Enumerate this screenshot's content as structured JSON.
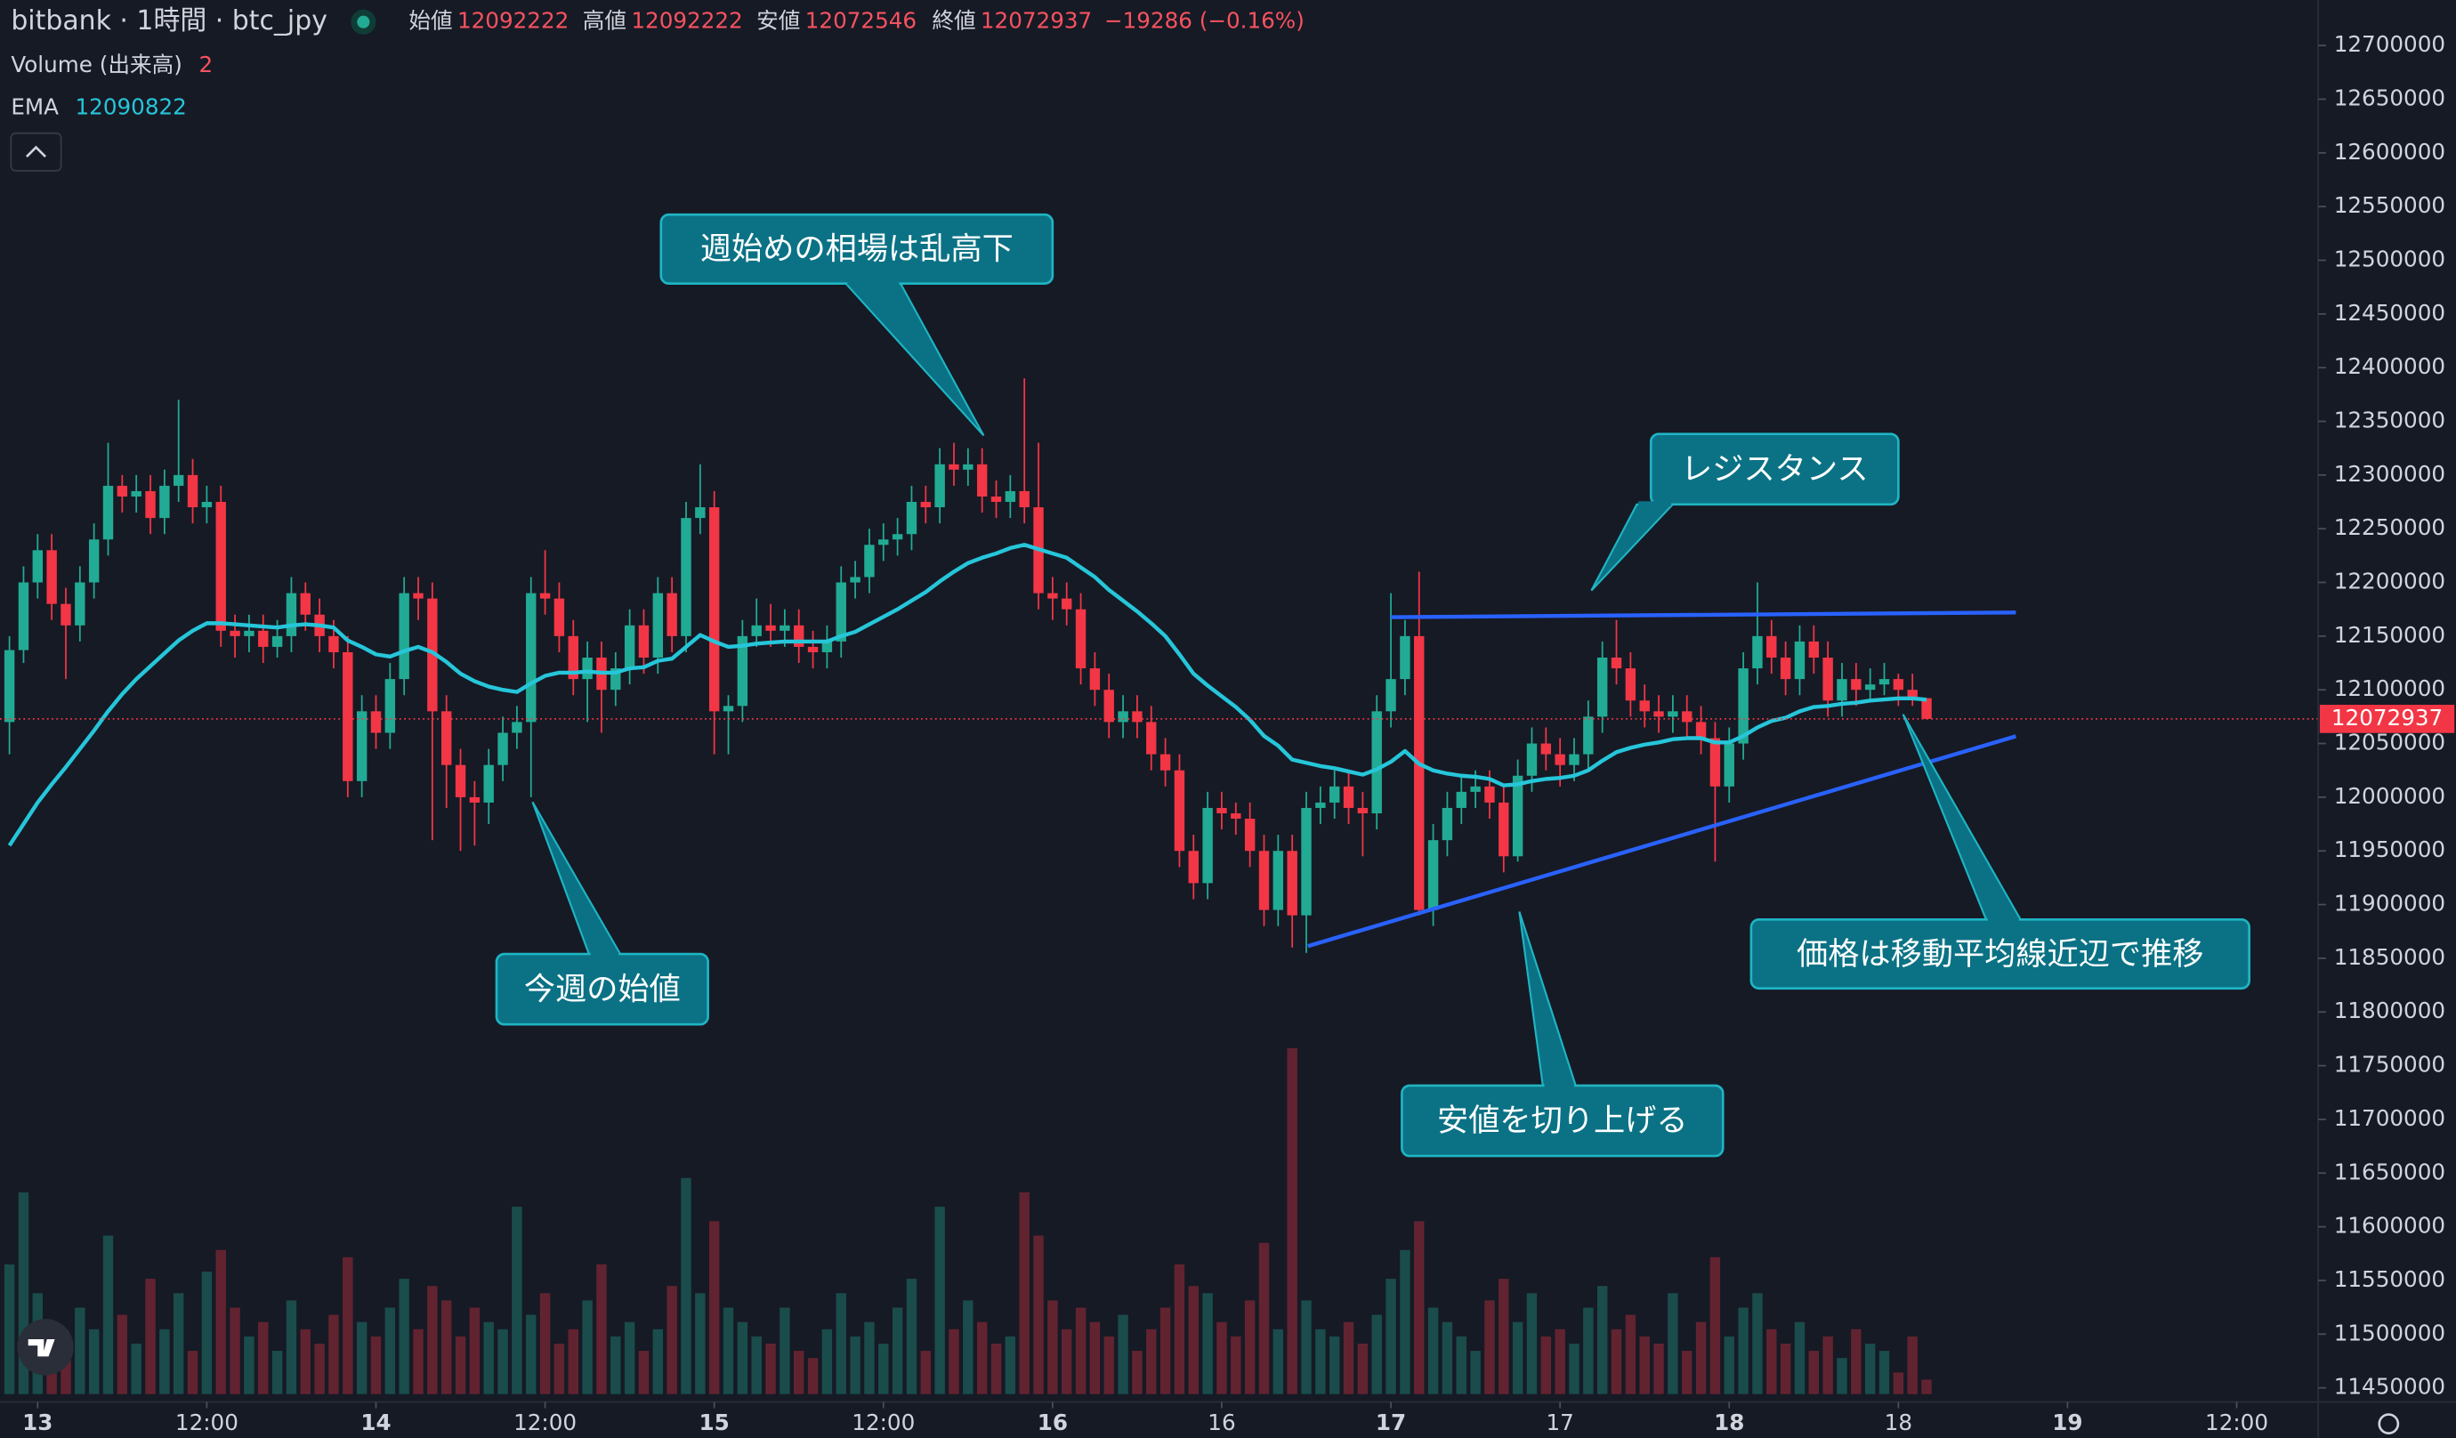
{
  "chart_data": {
    "type": "candlestick",
    "title": "bitbank · 1時間 · btc_jpy",
    "ohlc_labels": [
      "始値",
      "高値",
      "安値",
      "終値"
    ],
    "change": "−19286 (−0.16%)",
    "volume_label": "Volume (出来高)",
    "ema_label": "EMA",
    "up_color": "#22ab94",
    "down_color": "#f23645",
    "ema_color": "#26c6da",
    "xlim": [
      -0.67,
      163.78
    ],
    "xticks": [
      {
        "value": 2,
        "label": "13"
      },
      {
        "value": 14,
        "label": "12:00"
      },
      {
        "value": 26,
        "label": "14"
      },
      {
        "value": 38,
        "label": "12:00"
      },
      {
        "value": 50,
        "label": "15"
      },
      {
        "value": 62,
        "label": "12:00"
      },
      {
        "value": 74,
        "label": "16"
      },
      {
        "value": 86,
        "label": "16"
      },
      {
        "value": 98,
        "label": "17"
      },
      {
        "value": 110,
        "label": "17"
      },
      {
        "value": 122,
        "label": "18"
      },
      {
        "value": 134,
        "label": "18"
      },
      {
        "value": 146,
        "label": "19"
      },
      {
        "value": 158,
        "label": "12:00"
      }
    ],
    "ylim": [
      11436900,
      12742300
    ],
    "yticks": [
      11450000,
      11500000,
      11550000,
      11600000,
      11650000,
      11700000,
      11750000,
      11800000,
      11850000,
      11900000,
      11950000,
      12000000,
      12050000,
      12100000,
      12150000,
      12200000,
      12250000,
      12300000,
      12350000,
      12400000,
      12450000,
      12500000,
      12550000,
      12600000,
      12650000,
      12700000
    ],
    "volume_ylim": [
      0,
      100
    ],
    "open": [
      12070000,
      12137000,
      12200000,
      12230000,
      12180000,
      12160000,
      12200000,
      12240000,
      12290000,
      12280000,
      12285000,
      12260000,
      12290000,
      12300000,
      12270000,
      12275000,
      12155000,
      12150000,
      12155000,
      12140000,
      12150000,
      12190000,
      12170000,
      12150000,
      12135000,
      12015000,
      12080000,
      12060000,
      12110000,
      12190000,
      12185000,
      12080000,
      12030000,
      12000000,
      11995000,
      12030000,
      12060000,
      12070000,
      12190000,
      12185000,
      12150000,
      12110000,
      12130000,
      12100000,
      12120000,
      12160000,
      12130000,
      12190000,
      12150000,
      12260000,
      12270000,
      12080000,
      12085000,
      12150000,
      12160000,
      12155000,
      12160000,
      12140000,
      12135000,
      12145000,
      12200000,
      12205000,
      12235000,
      12240000,
      12245000,
      12275000,
      12270000,
      12310000,
      12305000,
      12310000,
      12280000,
      12275000,
      12285000,
      12270000,
      12190000,
      12185000,
      12175000,
      12120000,
      12100000,
      12070000,
      12080000,
      12070000,
      12040000,
      12025000,
      11950000,
      11920000,
      11990000,
      11985000,
      11980000,
      11950000,
      11895000,
      11950000,
      11890000,
      11990000,
      11995000,
      12010000,
      11990000,
      11985000,
      12080000,
      12110000,
      12150000,
      11895000,
      11960000,
      11990000,
      12005000,
      12010000,
      11995000,
      11945000,
      12020000,
      12050000,
      12040000,
      12030000,
      12040000,
      12075000,
      12130000,
      12120000,
      12090000,
      12080000,
      12075000,
      12080000,
      12070000,
      12055000,
      12010000,
      12050000,
      12120000,
      12150000,
      12130000,
      12110000,
      12145000,
      12130000,
      12090000,
      12110000,
      12100000,
      12105000,
      12110000,
      12100000,
      12092222
    ],
    "high": [
      12150000,
      12215000,
      12245000,
      12245000,
      12195000,
      12215000,
      12255000,
      12330000,
      12300000,
      12300000,
      12300000,
      12305000,
      12370000,
      12315000,
      12290000,
      12290000,
      12170000,
      12170000,
      12170000,
      12165000,
      12205000,
      12200000,
      12185000,
      12165000,
      12150000,
      12095000,
      12095000,
      12125000,
      12205000,
      12205000,
      12200000,
      12095000,
      12045000,
      12015000,
      12045000,
      12075000,
      12085000,
      12205000,
      12230000,
      12200000,
      12165000,
      12145000,
      12145000,
      12135000,
      12175000,
      12175000,
      12205000,
      12205000,
      12275000,
      12310000,
      12285000,
      12095000,
      12165000,
      12185000,
      12180000,
      12175000,
      12175000,
      12155000,
      12160000,
      12215000,
      12220000,
      12250000,
      12255000,
      12260000,
      12290000,
      12290000,
      12325000,
      12330000,
      12325000,
      12325000,
      12295000,
      12300000,
      12390000,
      12330000,
      12205000,
      12200000,
      12190000,
      12135000,
      12115000,
      12095000,
      12095000,
      12085000,
      12055000,
      12040000,
      11965000,
      12005000,
      12005000,
      11995000,
      11995000,
      11965000,
      11965000,
      11965000,
      12005000,
      12010000,
      12025000,
      12025000,
      12005000,
      12095000,
      12190000,
      12165000,
      12210000,
      11975000,
      12005000,
      12020000,
      12025000,
      12025000,
      12010000,
      12035000,
      12065000,
      12065000,
      12055000,
      12055000,
      12090000,
      12145000,
      12165000,
      12135000,
      12105000,
      12095000,
      12095000,
      12095000,
      12085000,
      12070000,
      12065000,
      12135000,
      12200000,
      12165000,
      12145000,
      12160000,
      12160000,
      12145000,
      12125000,
      12125000,
      12120000,
      12125000,
      12115000,
      12115000,
      12092222
    ],
    "low": [
      12040000,
      12125000,
      12185000,
      12165000,
      12110000,
      12145000,
      12185000,
      12225000,
      12265000,
      12265000,
      12245000,
      12245000,
      12275000,
      12255000,
      12255000,
      12140000,
      12130000,
      12135000,
      12125000,
      12130000,
      12135000,
      12155000,
      12135000,
      12120000,
      12000000,
      12000000,
      12045000,
      12045000,
      12095000,
      12165000,
      11960000,
      11990000,
      11950000,
      11955000,
      11975000,
      12015000,
      12045000,
      12000000,
      12170000,
      12135000,
      12095000,
      12070000,
      12060000,
      12085000,
      12105000,
      12115000,
      12115000,
      12135000,
      12135000,
      12245000,
      12040000,
      12040000,
      12070000,
      12140000,
      12140000,
      12140000,
      12125000,
      12120000,
      12120000,
      12130000,
      12185000,
      12190000,
      12220000,
      12225000,
      12230000,
      12255000,
      12255000,
      12290000,
      12290000,
      12265000,
      12260000,
      12260000,
      12255000,
      12175000,
      12165000,
      12160000,
      12105000,
      12085000,
      12055000,
      12055000,
      12055000,
      12025000,
      12010000,
      11935000,
      11905000,
      11905000,
      11970000,
      11965000,
      11935000,
      11880000,
      11880000,
      11860000,
      11855000,
      11975000,
      11980000,
      11975000,
      11945000,
      11970000,
      12065000,
      12095000,
      11890000,
      11880000,
      11945000,
      11975000,
      11990000,
      11980000,
      11930000,
      11940000,
      12005000,
      12025000,
      12010000,
      12015000,
      12025000,
      12060000,
      12105000,
      12075000,
      12065000,
      12060000,
      12060000,
      12055000,
      12040000,
      11940000,
      11995000,
      12035000,
      12105000,
      12115000,
      12095000,
      12095000,
      12115000,
      12075000,
      12075000,
      12085000,
      12090000,
      12095000,
      12085000,
      12085000,
      12072546
    ],
    "close": [
      12137000,
      12200000,
      12230000,
      12180000,
      12160000,
      12200000,
      12240000,
      12290000,
      12280000,
      12285000,
      12260000,
      12290000,
      12300000,
      12270000,
      12275000,
      12155000,
      12150000,
      12155000,
      12140000,
      12150000,
      12190000,
      12170000,
      12150000,
      12135000,
      12015000,
      12080000,
      12060000,
      12110000,
      12190000,
      12185000,
      12080000,
      12030000,
      12000000,
      11995000,
      12030000,
      12060000,
      12070000,
      12190000,
      12185000,
      12150000,
      12110000,
      12130000,
      12100000,
      12120000,
      12160000,
      12130000,
      12190000,
      12150000,
      12260000,
      12270000,
      12080000,
      12085000,
      12150000,
      12160000,
      12155000,
      12160000,
      12140000,
      12135000,
      12145000,
      12200000,
      12205000,
      12235000,
      12240000,
      12245000,
      12275000,
      12270000,
      12310000,
      12305000,
      12310000,
      12280000,
      12275000,
      12285000,
      12270000,
      12190000,
      12185000,
      12175000,
      12120000,
      12100000,
      12070000,
      12080000,
      12070000,
      12040000,
      12025000,
      11950000,
      11920000,
      11990000,
      11985000,
      11980000,
      11950000,
      11895000,
      11950000,
      11890000,
      11990000,
      11995000,
      12010000,
      11990000,
      11985000,
      12080000,
      12110000,
      12150000,
      11895000,
      11960000,
      11990000,
      12005000,
      12010000,
      11995000,
      11945000,
      12020000,
      12050000,
      12040000,
      12030000,
      12040000,
      12075000,
      12130000,
      12120000,
      12090000,
      12080000,
      12075000,
      12080000,
      12070000,
      12055000,
      12010000,
      12050000,
      12120000,
      12150000,
      12130000,
      12110000,
      12145000,
      12130000,
      12090000,
      12110000,
      12100000,
      12105000,
      12110000,
      12100000,
      12092222,
      12072937
    ],
    "ema": [
      11955000,
      11975000,
      11995000,
      12012000,
      12028000,
      12045000,
      12062000,
      12080000,
      12096000,
      12110000,
      12122000,
      12134000,
      12146000,
      12155000,
      12162000,
      12162000,
      12161000,
      12160000,
      12159000,
      12158000,
      12160000,
      12161000,
      12160000,
      12158000,
      12146000,
      12140000,
      12133000,
      12131000,
      12136000,
      12140000,
      12135000,
      12126000,
      12115000,
      12108000,
      12103000,
      12100000,
      12098000,
      12106000,
      12113000,
      12116000,
      12116000,
      12117000,
      12116000,
      12116000,
      12120000,
      12121000,
      12127000,
      12129000,
      12140000,
      12151000,
      12145000,
      12140000,
      12141000,
      12143000,
      12144000,
      12145000,
      12145000,
      12145000,
      12145000,
      12150000,
      12154000,
      12161000,
      12168000,
      12175000,
      12183000,
      12191000,
      12201000,
      12210000,
      12218000,
      12223000,
      12227000,
      12232000,
      12235000,
      12231000,
      12227000,
      12223000,
      12214000,
      12205000,
      12193000,
      12183000,
      12173000,
      12162000,
      12150000,
      12133000,
      12115000,
      12104000,
      12094000,
      12084000,
      12072000,
      12057000,
      12048000,
      12035000,
      12032000,
      12029000,
      12027000,
      12024000,
      12021000,
      12026000,
      12033000,
      12043000,
      12031000,
      12025000,
      12022000,
      12020000,
      12019000,
      12017000,
      12011000,
      12012000,
      12015000,
      12017000,
      12018000,
      12020000,
      12025000,
      12034000,
      12042000,
      12046000,
      12049000,
      12051000,
      12054000,
      12055000,
      12055000,
      12051000,
      12051000,
      12057000,
      12065000,
      12071000,
      12074000,
      12080000,
      12084000,
      12085000,
      12087000,
      12088000,
      12090000,
      12091000,
      12092000,
      12092000,
      12090822
    ],
    "volume": [
      18,
      28,
      14,
      10,
      8,
      12,
      9,
      22,
      11,
      7,
      16,
      9,
      14,
      6,
      17,
      20,
      12,
      8,
      10,
      6,
      13,
      9,
      7,
      11,
      19,
      10,
      8,
      12,
      16,
      9,
      15,
      13,
      8,
      12,
      10,
      9,
      26,
      11,
      14,
      7,
      9,
      13,
      18,
      8,
      10,
      6,
      9,
      15,
      30,
      14,
      24,
      12,
      10,
      8,
      7,
      12,
      6,
      5,
      9,
      14,
      8,
      10,
      7,
      12,
      16,
      6,
      26,
      9,
      13,
      10,
      7,
      8,
      28,
      22,
      13,
      9,
      12,
      10,
      8,
      11,
      6,
      9,
      12,
      18,
      15,
      14,
      10,
      8,
      13,
      21,
      9,
      48,
      13,
      9,
      8,
      10,
      7,
      11,
      16,
      20,
      24,
      12,
      10,
      8,
      6,
      13,
      16,
      10,
      14,
      8,
      9,
      7,
      12,
      15,
      9,
      11,
      8,
      7,
      14,
      6,
      10,
      19,
      8,
      12,
      14,
      9,
      7,
      10,
      6,
      8,
      5,
      9,
      7,
      6,
      3,
      8,
      2
    ],
    "annotations": [
      "週始めの相場は乱高下",
      "レジスタンス",
      "今週の始値",
      "安値を切り上げる",
      "価格は移動平均線近辺で推移"
    ]
  }
}
